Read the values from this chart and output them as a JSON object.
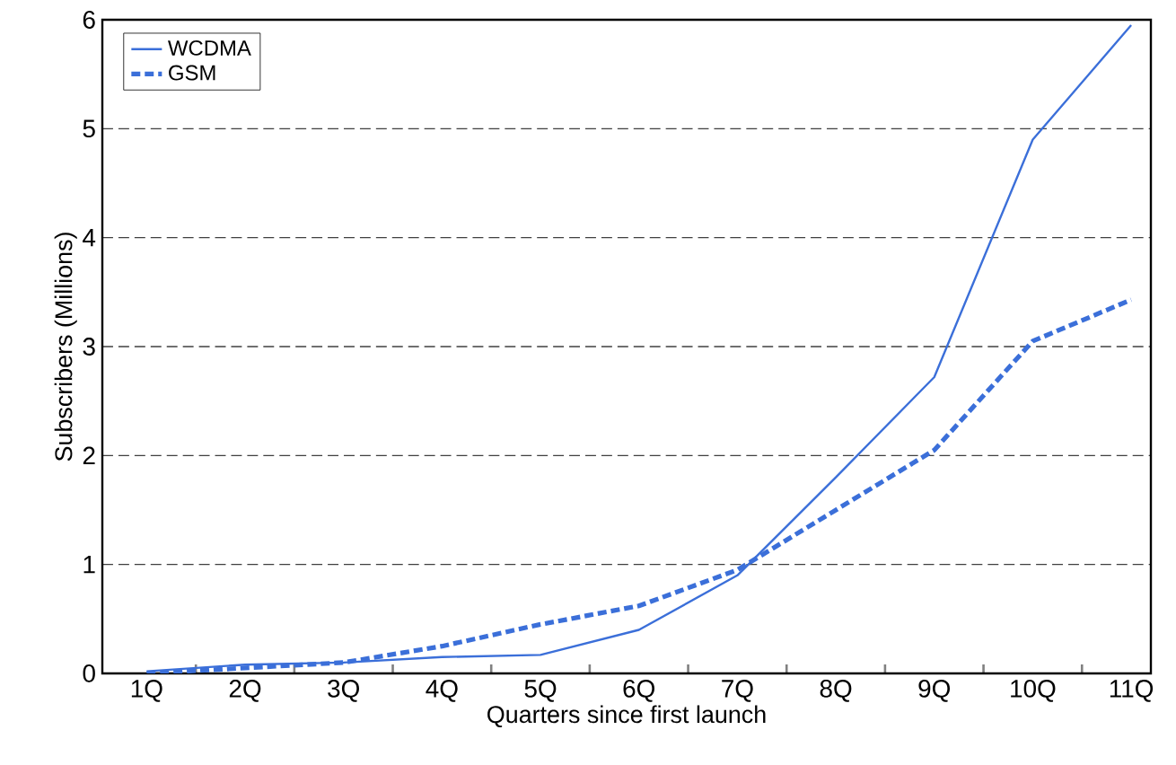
{
  "chart_data": {
    "type": "line",
    "xlabel": "Quarters since first launch",
    "ylabel": "Subscribers (Millions)",
    "categories": [
      "1Q",
      "2Q",
      "3Q",
      "4Q",
      "5Q",
      "6Q",
      "7Q",
      "8Q",
      "9Q",
      "10Q",
      "11Q"
    ],
    "series": [
      {
        "name": "WCDMA",
        "color": "#3b6fd9",
        "line_style": "solid",
        "values": [
          0.02,
          0.08,
          0.1,
          0.15,
          0.17,
          0.4,
          0.9,
          1.8,
          2.72,
          4.9,
          5.95
        ]
      },
      {
        "name": "GSM",
        "color": "#3b6fd9",
        "line_style": "dashed",
        "values": [
          0.0,
          0.05,
          0.1,
          0.25,
          0.45,
          0.62,
          0.95,
          1.5,
          2.05,
          3.05,
          3.43
        ]
      }
    ],
    "ylim": [
      0,
      6
    ],
    "yticks": [
      0,
      1,
      2,
      3,
      4,
      5,
      6
    ],
    "grid": "y",
    "legend": "top left"
  }
}
